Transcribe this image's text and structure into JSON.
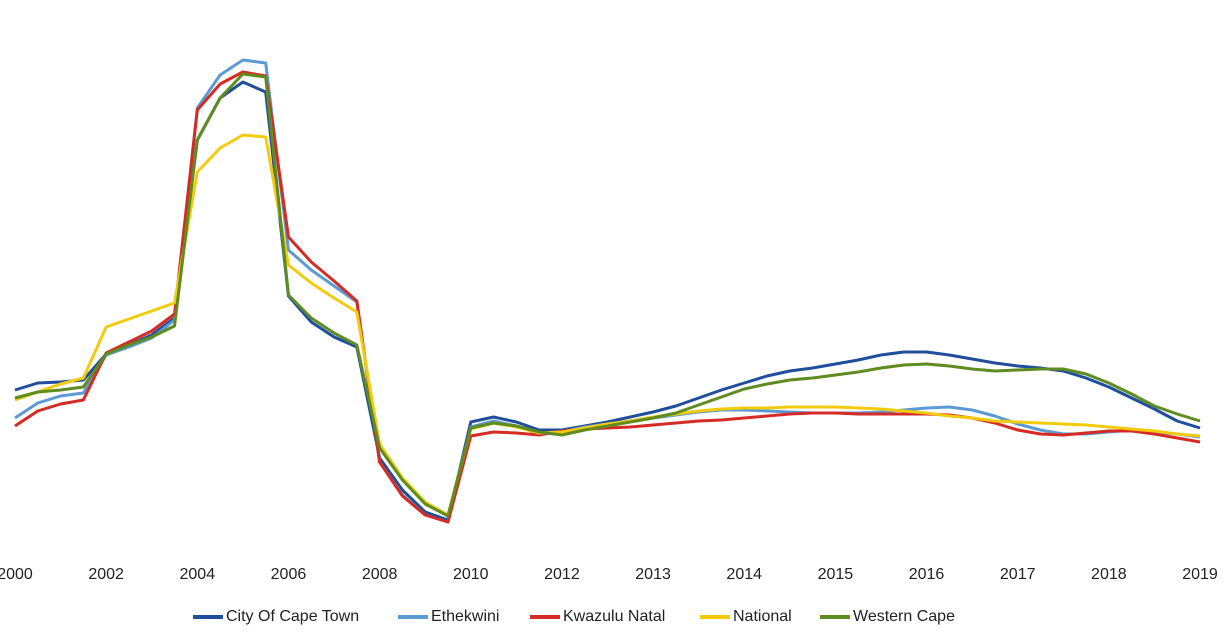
{
  "chart_data": {
    "type": "line",
    "categories": [
      "2000",
      null,
      null,
      null,
      "2002",
      null,
      null,
      null,
      "2004",
      null,
      null,
      null,
      "2006",
      null,
      null,
      null,
      "2008",
      null,
      null,
      null,
      "2010",
      null,
      null,
      null,
      "2012",
      null,
      null,
      null,
      "2013",
      null,
      null,
      null,
      "2014",
      null,
      null,
      null,
      "2015",
      null,
      null,
      null,
      "2016",
      null,
      null,
      null,
      "2017",
      null,
      null,
      null,
      "2018",
      null,
      null,
      null,
      "2019"
    ],
    "ylim": [
      0,
      540
    ],
    "legend": "bottom",
    "series": [
      {
        "name": "City Of Cape Town",
        "color": "#1f4e9c",
        "values": [
          150,
          157,
          158,
          160,
          186,
          195,
          205,
          222,
          400,
          442,
          458,
          448,
          244,
          218,
          203,
          193,
          82,
          50,
          28,
          20,
          118,
          123,
          118,
          110,
          110,
          114,
          118,
          123,
          128,
          134,
          142,
          150,
          157,
          164,
          169,
          172,
          176,
          180,
          185,
          188,
          188,
          185,
          181,
          177,
          174,
          172,
          169,
          162,
          153,
          142,
          131,
          119,
          112
        ]
      },
      {
        "name": "Ethekwini",
        "color": "#5b9bd5",
        "values": [
          122,
          137,
          144,
          147,
          185,
          193,
          202,
          220,
          432,
          465,
          480,
          477,
          290,
          270,
          254,
          238,
          78,
          45,
          25,
          18,
          113,
          119,
          114,
          106,
          108,
          113,
          116,
          119,
          122,
          125,
          128,
          130,
          130,
          129,
          128,
          127,
          127,
          127,
          128,
          130,
          132,
          133,
          130,
          124,
          116,
          110,
          106,
          106,
          108,
          110,
          108,
          106,
          103
        ]
      },
      {
        "name": "Kwazulu Natal",
        "color": "#d62b24",
        "values": [
          114,
          129,
          136,
          140,
          187,
          198,
          209,
          226,
          430,
          456,
          468,
          464,
          303,
          278,
          259,
          239,
          78,
          44,
          25,
          18,
          104,
          108,
          107,
          105,
          109,
          111,
          112,
          113,
          115,
          117,
          119,
          120,
          122,
          124,
          126,
          127,
          127,
          126,
          126,
          126,
          126,
          125,
          122,
          117,
          110,
          106,
          105,
          107,
          109,
          109,
          106,
          102,
          98
        ]
      },
      {
        "name": "National",
        "color": "#f2cc0c",
        "values": [
          140,
          148,
          156,
          162,
          213,
          221,
          229,
          237,
          368,
          392,
          405,
          403,
          275,
          257,
          242,
          228,
          96,
          62,
          38,
          25,
          111,
          117,
          113,
          107,
          108,
          112,
          116,
          119,
          123,
          126,
          129,
          131,
          132,
          132,
          133,
          133,
          133,
          132,
          131,
          129,
          127,
          124,
          122,
          119,
          118,
          117,
          116,
          115,
          113,
          111,
          109,
          106,
          104
        ]
      },
      {
        "name": "Western Cape",
        "color": "#5e8c1f",
        "values": [
          142,
          148,
          150,
          153,
          186,
          195,
          203,
          214,
          400,
          442,
          466,
          463,
          245,
          222,
          207,
          195,
          92,
          60,
          36,
          24,
          112,
          117,
          114,
          108,
          105,
          110,
          114,
          118,
          122,
          127,
          135,
          143,
          151,
          156,
          160,
          162,
          165,
          168,
          172,
          175,
          176,
          174,
          171,
          169,
          170,
          171,
          171,
          166,
          157,
          146,
          134,
          126,
          119
        ]
      }
    ]
  }
}
